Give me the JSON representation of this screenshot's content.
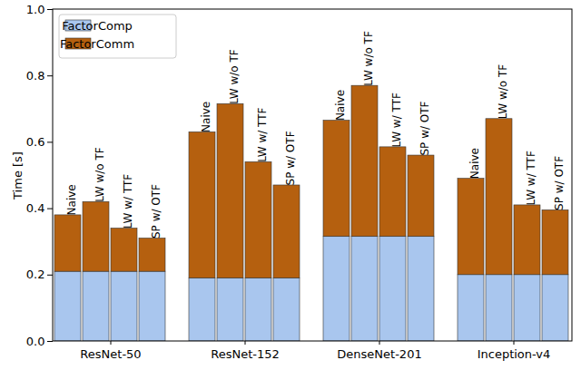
{
  "chart_data": {
    "type": "bar",
    "stacked": true,
    "categories": [
      "ResNet-50",
      "ResNet-152",
      "DenseNet-201",
      "Inception-v4"
    ],
    "bar_labels": [
      "Naive",
      "LW w/o TF",
      "LW w/ TTF",
      "SP w/ OTF"
    ],
    "y_label": "Time [s]",
    "ylim": [
      0,
      1
    ],
    "yticks": [
      {
        "value": 0,
        "label": "0.0"
      },
      {
        "value": 0.2,
        "label": "0.2"
      },
      {
        "value": 0.4,
        "label": "0.4"
      },
      {
        "value": 0.6,
        "label": "0.6"
      },
      {
        "value": 0.8,
        "label": "0.8"
      },
      {
        "value": 1,
        "label": "1.0"
      }
    ],
    "grid": false,
    "legend": "upper left",
    "series": [
      {
        "name": "FactorComp",
        "color": "#a9c6ee",
        "values": [
          [
            0.21,
            0.21,
            0.21,
            0.21
          ],
          [
            0.19,
            0.19,
            0.19,
            0.19
          ],
          [
            0.315,
            0.315,
            0.315,
            0.315
          ],
          [
            0.2,
            0.2,
            0.2,
            0.2
          ]
        ]
      },
      {
        "name": "FactorComm",
        "color": "#b5600f",
        "values": [
          [
            0.17,
            0.21,
            0.13,
            0.1
          ],
          [
            0.44,
            0.525,
            0.35,
            0.28
          ],
          [
            0.35,
            0.455,
            0.27,
            0.245
          ],
          [
            0.29,
            0.47,
            0.21,
            0.195
          ]
        ]
      }
    ]
  }
}
